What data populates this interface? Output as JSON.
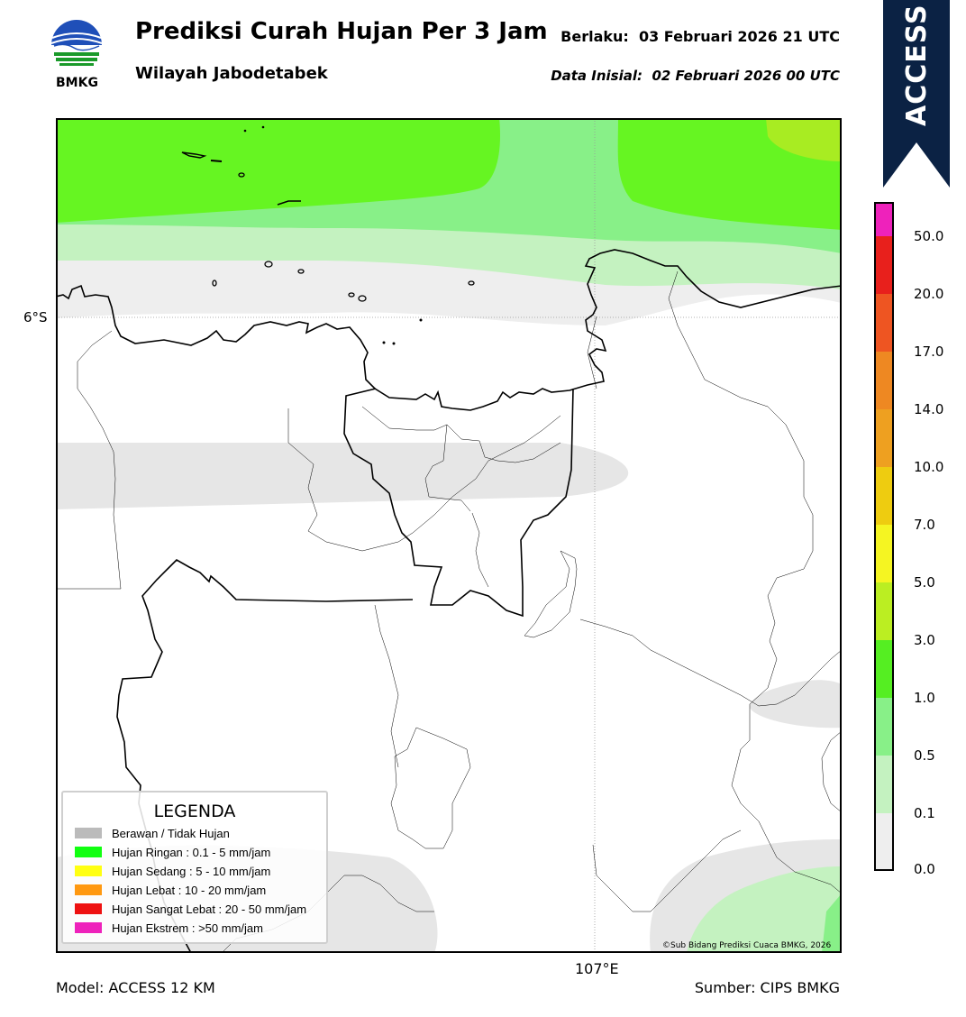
{
  "header": {
    "title": "Prediksi Curah Hujan Per 3 Jam",
    "subtitle": "Wilayah Jabodetabek",
    "valid": "Berlaku:  03 Februari 2026 21 UTC",
    "initial": "Data Inisial:  02 Februari 2026 00 UTC",
    "logo_text": "BMKG"
  },
  "badge": {
    "text": "ACCESS",
    "color": "#0b2244"
  },
  "map": {
    "lon_label": "107°E",
    "lat_label": "6°S",
    "credit": "©Sub Bidang Prediksi Cuaca BMKG, 2026"
  },
  "colorbar": {
    "labels": [
      "50.0",
      "20.0",
      "17.0",
      "14.0",
      "10.0",
      "7.0",
      "5.0",
      "3.0",
      "1.0",
      "0.5",
      "0.1",
      "0.0"
    ],
    "colors": [
      "#ee22bb",
      "#e8201c",
      "#ee5522",
      "#ee8822",
      "#eea020",
      "#eecc10",
      "#f5f522",
      "#bbee22",
      "#55ee22",
      "#88f088",
      "#c4f2c0",
      "#eeeeee"
    ]
  },
  "legend": {
    "title": "LEGENDA",
    "items": [
      {
        "label": "Berawan / Tidak Hujan",
        "color": "#bbbbbb"
      },
      {
        "label": "Hujan Ringan : 0.1 - 5 mm/jam",
        "color": "#11ff11"
      },
      {
        "label": "Hujan Sedang : 5 - 10 mm/jam",
        "color": "#ffff11"
      },
      {
        "label": "Hujan Lebat : 10 - 20 mm/jam",
        "color": "#ff9911"
      },
      {
        "label": "Hujan Sangat Lebat : 20 - 50 mm/jam",
        "color": "#ee1111"
      },
      {
        "label": "Hujan Ekstrem : >50 mm/jam",
        "color": "#ee22bb"
      }
    ]
  },
  "footer": {
    "model": "Model: ACCESS 12 KM",
    "source": "Sumber: CIPS BMKG"
  }
}
